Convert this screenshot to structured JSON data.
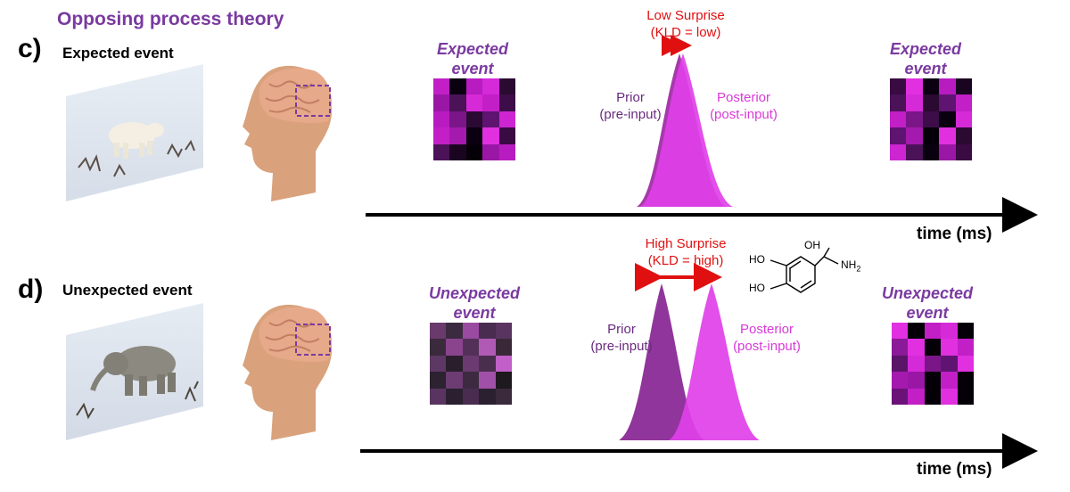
{
  "title": "Opposing process theory",
  "panels": [
    {
      "letter": "c)",
      "row_label": "Expected event",
      "left_event": "Expected\nevent",
      "right_event": "Expected\nevent",
      "surprise": "Low Surprise\n(KLD = low)",
      "prior": "Prior\n(pre-input)",
      "posterior": "Posterior\n(post-input)",
      "time": "time (ms)",
      "left_grid": [
        "#c21fc6",
        "#0a0010",
        "#b81cc0",
        "#d52ad8",
        "#2a0a30",
        "#9a17a6",
        "#4b1258",
        "#d62ad8",
        "#c21fc6",
        "#3c0d48",
        "#b81cc0",
        "#7a1688",
        "#2a0a33",
        "#5e1470",
        "#ce25d2",
        "#c21fc6",
        "#a51aae",
        "#0a0010",
        "#e030e0",
        "#3a0a42",
        "#4b1258",
        "#1a0520",
        "#050008",
        "#9a17a6",
        "#b81cc0"
      ],
      "right_grid": [
        "#3a0a42",
        "#e030e0",
        "#0a0010",
        "#b81cc0",
        "#1a0520",
        "#4b1258",
        "#d52ad8",
        "#2a0a30",
        "#5e1470",
        "#c21fc6",
        "#c21fc6",
        "#7a1688",
        "#3c0d48",
        "#0a0010",
        "#d62ad8",
        "#5e1470",
        "#a51aae",
        "#050008",
        "#e030e0",
        "#2a0a30",
        "#ce25d2",
        "#4b1258",
        "#0a0010",
        "#9a17a6",
        "#3a0a42"
      ]
    },
    {
      "letter": "d)",
      "row_label": "Unexpected event",
      "left_event": "Unexpected\nevent",
      "right_event": "Unexpected\nevent",
      "surprise": "High Surprise\n(KLD = high)",
      "prior": "Prior\n(pre-input)",
      "posterior": "Posterior\n(post-input)",
      "time": "time (ms)",
      "left_grid": [
        "#6a3a6c",
        "#3c2a40",
        "#9a4aa0",
        "#4a2c50",
        "#5a3460",
        "#3a2a3c",
        "#8a448e",
        "#533058",
        "#b05ab6",
        "#3a2838",
        "#5e3864",
        "#2a1e2c",
        "#6a3a70",
        "#4a2e4e",
        "#c060c8",
        "#2c2230",
        "#6c3c72",
        "#3c2a40",
        "#a050a8",
        "#1e181f",
        "#5a3460",
        "#2a2030",
        "#4a2c50",
        "#2a2030",
        "#3a2a3c"
      ],
      "right_grid": [
        "#e030e0",
        "#050008",
        "#c21fc6",
        "#d62ad8",
        "#050008",
        "#8a1a98",
        "#e030e0",
        "#050008",
        "#e030e0",
        "#c21fc6",
        "#5a1468",
        "#d52ad8",
        "#7a1688",
        "#5e1470",
        "#e030e0",
        "#a51aae",
        "#9a17a6",
        "#050008",
        "#c21fc6",
        "#050008",
        "#6a1278",
        "#c21fc6",
        "#050008",
        "#e030e0",
        "#050008"
      ]
    }
  ],
  "icons": [
    "polar-bear-photo",
    "elephant-photo",
    "head-with-brain",
    "dopamine-molecule"
  ],
  "molecule": {
    "oh": "OH",
    "ho1": "HO",
    "ho2": "HO",
    "nh2": "NH",
    "sub": "2"
  },
  "colors": {
    "purple": "#7a3aa0",
    "magenta": "#e040e8",
    "red": "#e01010",
    "prior_dark": "#8a2a96"
  }
}
